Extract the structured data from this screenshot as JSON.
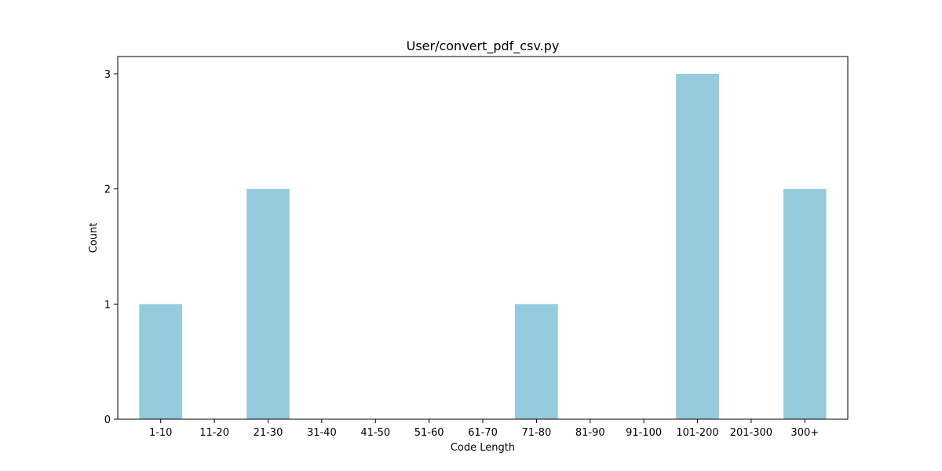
{
  "chart_data": {
    "type": "bar",
    "title": "User/convert_pdf_csv.py",
    "xlabel": "Code Length",
    "ylabel": "Count",
    "categories": [
      "1-10",
      "11-20",
      "21-30",
      "31-40",
      "41-50",
      "51-60",
      "61-70",
      "71-80",
      "81-90",
      "91-100",
      "101-200",
      "201-300",
      "300+"
    ],
    "values": [
      1,
      0,
      2,
      0,
      0,
      0,
      0,
      1,
      0,
      0,
      3,
      0,
      2
    ],
    "ylim": [
      0,
      3.15
    ],
    "yticks": [
      "0",
      "1",
      "2",
      "3"
    ],
    "bar_color": "#96cadd",
    "grid": false,
    "legend": "none"
  }
}
